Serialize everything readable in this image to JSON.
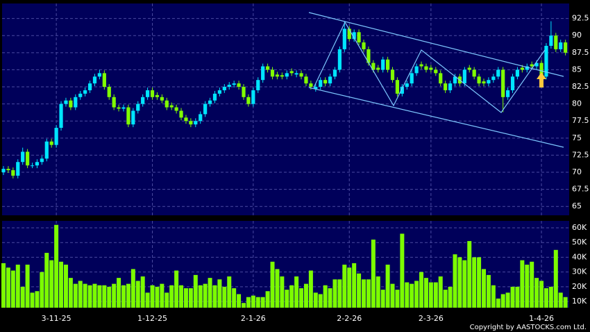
{
  "chart_data": [
    {
      "type": "candlestick",
      "categories": [
        null,
        null,
        null,
        null,
        null,
        null,
        null,
        null,
        null,
        null,
        null,
        "3-11-25",
        null,
        null,
        null,
        null,
        null,
        null,
        null,
        null,
        null,
        null,
        null,
        null,
        null,
        null,
        null,
        null,
        null,
        null,
        null,
        "1-12-25",
        null,
        null,
        null,
        null,
        null,
        null,
        null,
        null,
        null,
        null,
        null,
        null,
        null,
        null,
        null,
        null,
        null,
        null,
        null,
        null,
        "2-1-26",
        null,
        null,
        null,
        null,
        null,
        null,
        null,
        null,
        null,
        null,
        null,
        null,
        null,
        null,
        null,
        null,
        null,
        null,
        null,
        "2-2-26",
        null,
        null,
        null,
        null,
        null,
        null,
        null,
        null,
        null,
        null,
        null,
        null,
        null,
        null,
        null,
        null,
        "2-3-26",
        null,
        null,
        null,
        null,
        null,
        null,
        null,
        null,
        null,
        null,
        null,
        null,
        null,
        null,
        null,
        null,
        null,
        null,
        null,
        null,
        null,
        null,
        "1-4-26",
        null,
        null,
        null,
        null,
        null
      ],
      "open": [
        70.0,
        70.5,
        70.3,
        69.5,
        71.5,
        73,
        71,
        71,
        71.5,
        72,
        74.5,
        74,
        76.5,
        80,
        80.5,
        79.5,
        81,
        81.5,
        82,
        83,
        84,
        84.5,
        82.5,
        81,
        79.5,
        79.3,
        79.5,
        77,
        79,
        80,
        81,
        82,
        81.3,
        81,
        80.5,
        79.8,
        79.5,
        79,
        78,
        77.5,
        77,
        77.5,
        78.5,
        80,
        80.5,
        81.5,
        82,
        82.5,
        82.8,
        83,
        82.5,
        81,
        80,
        82,
        83.5,
        85.5,
        85,
        84.3,
        84.2,
        84,
        84.8,
        84.3,
        84.5,
        84,
        83,
        82.2,
        82.5,
        83.5,
        83,
        84,
        85,
        88,
        91,
        89.5,
        90.5,
        89,
        88,
        86,
        85.3,
        85,
        86.5,
        85,
        83.5,
        81.5,
        82.5,
        83,
        84.5,
        85.8,
        85.5,
        85.3,
        85,
        84.5,
        83,
        82,
        83,
        84,
        83,
        85.3,
        85,
        84,
        83.3,
        83,
        83.5,
        84,
        85,
        81,
        82,
        84,
        85.3,
        85,
        85.8,
        85.5,
        86,
        84,
        88.5,
        90,
        88,
        89
      ],
      "high": [
        70.9,
        70.9,
        70.7,
        71.9,
        73.6,
        73.4,
        71.4,
        71.9,
        72.4,
        74.9,
        74.9,
        76.9,
        80.4,
        80.9,
        80.9,
        81.4,
        81.9,
        82.4,
        83.4,
        84.4,
        85.0,
        84.9,
        82.9,
        81.4,
        79.9,
        79.9,
        79.9,
        79.4,
        80.4,
        81.4,
        82.4,
        82.4,
        81.7,
        81.4,
        80.9,
        80.2,
        79.9,
        79.4,
        78.4,
        77.9,
        77.9,
        78.9,
        80.4,
        80.9,
        81.9,
        82.4,
        82.9,
        83.2,
        83.4,
        83.4,
        82.9,
        81.4,
        82.4,
        83.9,
        85.9,
        85.9,
        85.4,
        84.7,
        84.6,
        84.9,
        85.2,
        84.9,
        84.9,
        84.4,
        83.4,
        82.9,
        83.9,
        83.9,
        84.4,
        85.4,
        88.4,
        92.1,
        91.4,
        90.9,
        90.9,
        89.4,
        88.4,
        86.4,
        85.7,
        86.9,
        86.9,
        85.4,
        83.9,
        82.9,
        83.4,
        84.9,
        85.9,
        86.2,
        85.9,
        85.7,
        85.4,
        84.9,
        83.4,
        83.4,
        84.4,
        84.4,
        85.4,
        85.7,
        85.4,
        84.4,
        83.7,
        83.9,
        84.4,
        85.4,
        85.4,
        82.4,
        84.4,
        85.4,
        85.7,
        85.9,
        86.2,
        86.4,
        86.4,
        88.9,
        92.1,
        90.4,
        89.4,
        89.4
      ],
      "low": [
        69.6,
        69.9,
        69.1,
        69.1,
        71.1,
        70.6,
        70.6,
        70.6,
        71.1,
        71.6,
        73.6,
        73.6,
        76.1,
        79.6,
        79.1,
        79.1,
        80.6,
        81.1,
        81.6,
        82.6,
        83.6,
        82.1,
        80.6,
        79.1,
        78.9,
        78.9,
        76.6,
        76.6,
        78.6,
        79.6,
        80.6,
        80.6,
        80.6,
        80.1,
        79.1,
        79.1,
        78.6,
        77.6,
        77.1,
        76.6,
        76.6,
        77.1,
        78.1,
        79.6,
        80.1,
        81.1,
        81.6,
        82.1,
        82.4,
        82.1,
        80.6,
        79.6,
        79.6,
        81.6,
        83.1,
        84.6,
        83.6,
        83.6,
        83.6,
        83.6,
        84.1,
        83.9,
        83.6,
        82.6,
        82.1,
        81.8,
        82.1,
        82.6,
        82.6,
        83.6,
        84.6,
        87.6,
        89.1,
        89.1,
        88.6,
        87.6,
        85.6,
        84.6,
        84.6,
        84.6,
        84.6,
        83.1,
        81.1,
        81.1,
        82.1,
        82.6,
        84.1,
        85.1,
        84.6,
        84.6,
        84.1,
        82.6,
        81.6,
        81.6,
        82.6,
        82.6,
        82.6,
        84.6,
        83.6,
        82.6,
        82.6,
        82.6,
        83.1,
        83.6,
        78.8,
        80.6,
        81.6,
        83.6,
        84.6,
        84.6,
        85.1,
        85.1,
        83.6,
        83.6,
        88.1,
        87.6,
        87.6,
        87.1
      ],
      "close": [
        70.5,
        70.3,
        69.5,
        71.5,
        73,
        71,
        71,
        71.5,
        72,
        74.5,
        74,
        76.5,
        80,
        80.5,
        79.5,
        81,
        81.5,
        82,
        83,
        84,
        84.5,
        82.5,
        81,
        79.5,
        79.3,
        79.5,
        77,
        79,
        80,
        81,
        82,
        81,
        81,
        80.5,
        79.5,
        79.5,
        79,
        78,
        77.5,
        77,
        77.5,
        78.5,
        80,
        80.5,
        81.5,
        82,
        82.5,
        82.8,
        83,
        82.5,
        81,
        80,
        82,
        83.5,
        85.5,
        85,
        84,
        84,
        84,
        84.5,
        84.5,
        84.5,
        84,
        83,
        82.5,
        82.5,
        83.5,
        83,
        84,
        85,
        88,
        91,
        89.5,
        90.5,
        89,
        88,
        86,
        85,
        85,
        86.5,
        85,
        83.5,
        81.5,
        82.5,
        83,
        84.5,
        85.5,
        85.5,
        85,
        85,
        84.5,
        83,
        82,
        83,
        84,
        83,
        85,
        85,
        84,
        83,
        83,
        83.5,
        84,
        85,
        81,
        82,
        84,
        85,
        85,
        85.5,
        85.5,
        86,
        84,
        88.5,
        90,
        88,
        89,
        87.5
      ],
      "up_color": "#00e5ff",
      "down_color": "#80ff00",
      "ylim": [
        63.7,
        94.7
      ],
      "yticks": [
        65,
        67.5,
        70,
        72.5,
        75,
        77.5,
        80,
        82.5,
        85,
        87.5,
        90,
        92.5
      ],
      "grid": true
    },
    {
      "type": "bar",
      "values": [
        36000,
        33000,
        31000,
        35000,
        20000,
        35000,
        16000,
        17000,
        30000,
        43000,
        38000,
        62000,
        37000,
        35000,
        26000,
        22000,
        24000,
        22000,
        21000,
        22000,
        21000,
        21000,
        20000,
        22000,
        26000,
        21000,
        22000,
        32000,
        24000,
        27000,
        16000,
        21000,
        20000,
        22000,
        16000,
        21000,
        31000,
        21000,
        19000,
        19000,
        28000,
        21000,
        22000,
        26000,
        21000,
        25000,
        20000,
        27000,
        19000,
        15000,
        9000,
        13000,
        14000,
        13000,
        13000,
        17000,
        37000,
        32000,
        27000,
        18000,
        21000,
        27000,
        19000,
        22000,
        31000,
        16000,
        15000,
        21000,
        19000,
        25000,
        25000,
        35000,
        33000,
        36000,
        29000,
        25000,
        25000,
        52000,
        27000,
        18000,
        35000,
        22000,
        18000,
        56000,
        23000,
        22000,
        24000,
        30000,
        26000,
        23000,
        23000,
        27000,
        18000,
        20000,
        42000,
        40000,
        38000,
        51000,
        40000,
        40000,
        32000,
        28000,
        21000,
        12000,
        15000,
        16000,
        20000,
        20000,
        38000,
        35000,
        37000,
        26000,
        24000,
        19000,
        20000,
        45000,
        16000,
        13000
      ],
      "color": "#7cfc00",
      "ylim": [
        5800,
        64700
      ],
      "yticks": [
        {
          "value": 10000,
          "label": "10K"
        },
        {
          "value": 20000,
          "label": "20K"
        },
        {
          "value": 30000,
          "label": "30K"
        },
        {
          "value": 40000,
          "label": "40K"
        },
        {
          "value": 50000,
          "label": "50K"
        },
        {
          "value": 60000,
          "label": "60K"
        }
      ],
      "grid": true
    }
  ],
  "copyright": "Copyright by AASTOCKS.com Ltd."
}
